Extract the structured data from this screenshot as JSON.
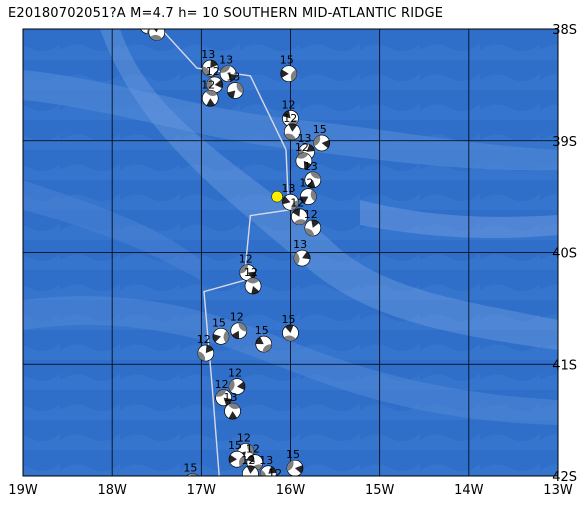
{
  "title": "E20180702051?A  M=4.7  h= 10 SOUTHERN MID-ATLANTIC RIDGE",
  "map": {
    "lon_range": [
      -19,
      -13
    ],
    "lat_range": [
      -42,
      -38
    ],
    "lon_ticks": [
      {
        "value": -19,
        "label": "19W"
      },
      {
        "value": -18,
        "label": "18W"
      },
      {
        "value": -17,
        "label": "17W"
      },
      {
        "value": -16,
        "label": "16W"
      },
      {
        "value": -15,
        "label": "15W"
      },
      {
        "value": -14,
        "label": "14W"
      },
      {
        "value": -13,
        "label": "13W"
      }
    ],
    "lat_ticks": [
      {
        "value": -38,
        "label": "38S"
      },
      {
        "value": -39,
        "label": "39S"
      },
      {
        "value": -40,
        "label": "40S"
      },
      {
        "value": -41,
        "label": "41S"
      },
      {
        "value": -42,
        "label": "42S"
      }
    ],
    "colors": {
      "ocean_deep": "#2f6fc9",
      "ocean_shallow": "#4f86d6",
      "ridge": "#6f9be0",
      "grid": "#000000",
      "plate_boundary": "#d8d8e8",
      "epicenter": "#ffee00",
      "beachball_fill": "#808080"
    },
    "epicenter": {
      "lon": -16.15,
      "lat": -39.5
    },
    "plate_boundary": [
      [
        -17.45,
        -38.0
      ],
      [
        -17.05,
        -38.35
      ],
      [
        -16.45,
        -38.42
      ],
      [
        -16.05,
        -39.08
      ],
      [
        -16.02,
        -39.62
      ],
      [
        -16.45,
        -39.67
      ],
      [
        -16.52,
        -40.25
      ],
      [
        -16.97,
        -40.35
      ],
      [
        -16.88,
        -41.18
      ],
      [
        -16.8,
        -42.0
      ]
    ],
    "mechanisms": [
      {
        "lon": -17.6,
        "lat": -37.97,
        "label": "15"
      },
      {
        "lon": -17.5,
        "lat": -38.03,
        "label": "15"
      },
      {
        "lon": -16.9,
        "lat": -38.35,
        "label": "13"
      },
      {
        "lon": -16.85,
        "lat": -38.5,
        "label": "12"
      },
      {
        "lon": -16.7,
        "lat": -38.4,
        "label": "13"
      },
      {
        "lon": -16.9,
        "lat": -38.62,
        "label": "12"
      },
      {
        "lon": -16.62,
        "lat": -38.55,
        "label": "13"
      },
      {
        "lon": -16.02,
        "lat": -38.4,
        "label": "15"
      },
      {
        "lon": -16.0,
        "lat": -38.8,
        "label": "12"
      },
      {
        "lon": -15.98,
        "lat": -38.92,
        "label": "12"
      },
      {
        "lon": -15.82,
        "lat": -39.1,
        "label": "13"
      },
      {
        "lon": -15.65,
        "lat": -39.02,
        "label": "15"
      },
      {
        "lon": -15.85,
        "lat": -39.18,
        "label": "12"
      },
      {
        "lon": -15.75,
        "lat": -39.35,
        "label": "13"
      },
      {
        "lon": -15.8,
        "lat": -39.5,
        "label": "12"
      },
      {
        "lon": -16.0,
        "lat": -39.55,
        "label": "13"
      },
      {
        "lon": -15.9,
        "lat": -39.68,
        "label": "12"
      },
      {
        "lon": -15.75,
        "lat": -39.78,
        "label": "12"
      },
      {
        "lon": -15.87,
        "lat": -40.05,
        "label": "13"
      },
      {
        "lon": -16.48,
        "lat": -40.18,
        "label": "12"
      },
      {
        "lon": -16.42,
        "lat": -40.3,
        "label": "12"
      },
      {
        "lon": -16.58,
        "lat": -40.7,
        "label": "12"
      },
      {
        "lon": -16.78,
        "lat": -40.75,
        "label": "15"
      },
      {
        "lon": -16.3,
        "lat": -40.82,
        "label": "15"
      },
      {
        "lon": -16.0,
        "lat": -40.72,
        "label": "15"
      },
      {
        "lon": -16.95,
        "lat": -40.9,
        "label": "12"
      },
      {
        "lon": -16.6,
        "lat": -41.2,
        "label": "12"
      },
      {
        "lon": -16.75,
        "lat": -41.3,
        "label": "12"
      },
      {
        "lon": -16.65,
        "lat": -41.42,
        "label": "13"
      },
      {
        "lon": -16.5,
        "lat": -41.78,
        "label": "12"
      },
      {
        "lon": -16.6,
        "lat": -41.85,
        "label": "15"
      },
      {
        "lon": -16.4,
        "lat": -41.88,
        "label": "12"
      },
      {
        "lon": -16.45,
        "lat": -41.98,
        "label": "12"
      },
      {
        "lon": -16.25,
        "lat": -41.98,
        "label": "13"
      },
      {
        "lon": -15.95,
        "lat": -41.93,
        "label": "15"
      },
      {
        "lon": -16.15,
        "lat": -42.1,
        "label": "12"
      },
      {
        "lon": -17.1,
        "lat": -42.05,
        "label": "15"
      }
    ]
  }
}
